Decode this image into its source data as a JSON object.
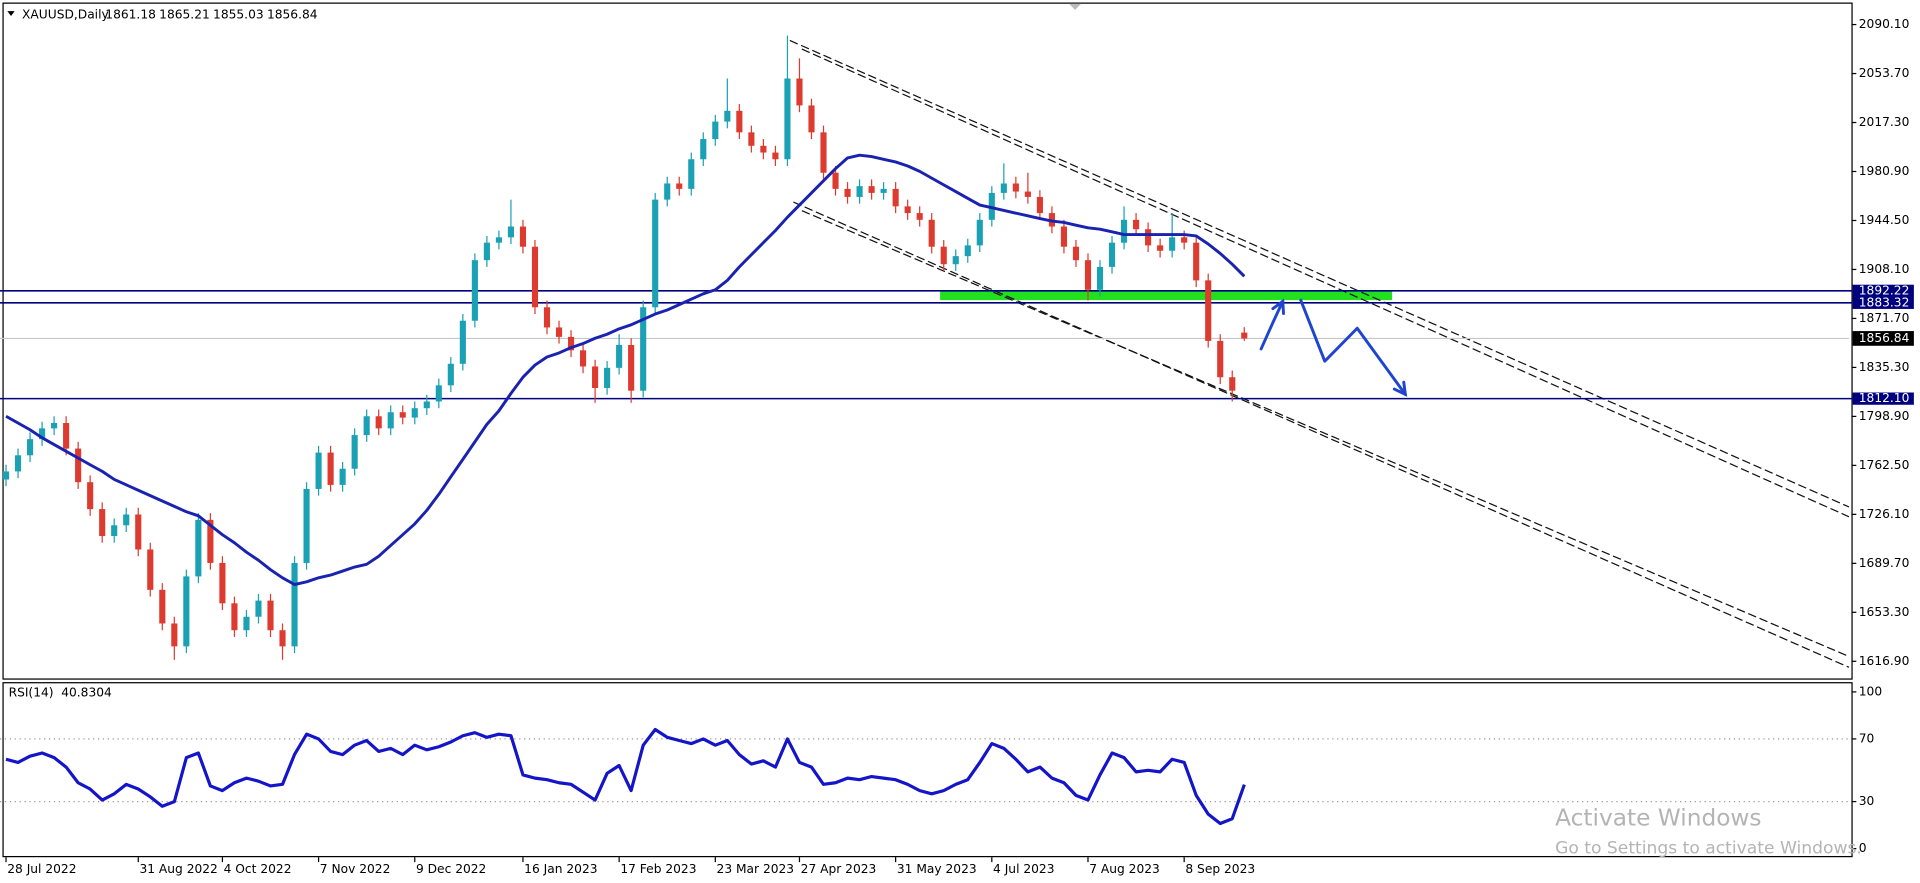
{
  "chart_data": {
    "type": "candlestick",
    "title": "XAUUSD,Daily",
    "up_color": "#1ba1b4",
    "down_color": "#dd3b30",
    "categories": [
      "28 Jul 2022",
      null,
      null,
      null,
      null,
      null,
      null,
      null,
      null,
      null,
      null,
      "31 Aug 2022",
      null,
      null,
      null,
      null,
      null,
      null,
      "4 Oct 2022",
      null,
      null,
      null,
      null,
      null,
      null,
      null,
      "7 Nov 2022",
      null,
      null,
      null,
      null,
      null,
      null,
      null,
      "9 Dec 2022",
      null,
      null,
      null,
      null,
      null,
      null,
      null,
      null,
      "16 Jan 2023",
      null,
      null,
      null,
      null,
      null,
      null,
      null,
      "17 Feb 2023",
      null,
      null,
      null,
      null,
      null,
      null,
      null,
      "23 Mar 2023",
      null,
      null,
      null,
      null,
      null,
      null,
      "27 Apr 2023",
      null,
      null,
      null,
      null,
      null,
      null,
      null,
      "31 May 2023",
      null,
      null,
      null,
      null,
      null,
      null,
      null,
      "4 Jul 2023",
      null,
      null,
      null,
      null,
      null,
      null,
      null,
      "7 Aug 2023",
      null,
      null,
      null,
      null,
      null,
      null,
      null,
      "8 Sep 2023",
      null,
      null,
      null,
      null,
      null
    ],
    "ohlc": [
      [
        1752,
        1763,
        1747,
        1758
      ],
      [
        1758,
        1775,
        1753,
        1770
      ],
      [
        1770,
        1787,
        1765,
        1782
      ],
      [
        1782,
        1795,
        1777,
        1790
      ],
      [
        1790,
        1799,
        1785,
        1794
      ],
      [
        1794,
        1799,
        1770,
        1775
      ],
      [
        1775,
        1780,
        1745,
        1750
      ],
      [
        1750,
        1755,
        1725,
        1730
      ],
      [
        1730,
        1735,
        1705,
        1710
      ],
      [
        1710,
        1723,
        1705,
        1718
      ],
      [
        1718,
        1731,
        1713,
        1726
      ],
      [
        1726,
        1731,
        1695,
        1700
      ],
      [
        1700,
        1705,
        1665,
        1670
      ],
      [
        1670,
        1675,
        1640,
        1645
      ],
      [
        1645,
        1650,
        1618,
        1628
      ],
      [
        1628,
        1685,
        1623,
        1680
      ],
      [
        1680,
        1727,
        1675,
        1722
      ],
      [
        1722,
        1727,
        1685,
        1690
      ],
      [
        1690,
        1695,
        1655,
        1660
      ],
      [
        1660,
        1665,
        1635,
        1640
      ],
      [
        1640,
        1655,
        1635,
        1650
      ],
      [
        1650,
        1667,
        1645,
        1662
      ],
      [
        1662,
        1667,
        1635,
        1640
      ],
      [
        1640,
        1645,
        1618,
        1628
      ],
      [
        1628,
        1695,
        1623,
        1690
      ],
      [
        1690,
        1750,
        1685,
        1745
      ],
      [
        1745,
        1777,
        1740,
        1772
      ],
      [
        1772,
        1777,
        1743,
        1748
      ],
      [
        1748,
        1765,
        1743,
        1760
      ],
      [
        1760,
        1790,
        1755,
        1785
      ],
      [
        1785,
        1804,
        1780,
        1799
      ],
      [
        1799,
        1804,
        1785,
        1790
      ],
      [
        1790,
        1807,
        1785,
        1802
      ],
      [
        1802,
        1807,
        1793,
        1798
      ],
      [
        1798,
        1810,
        1793,
        1805
      ],
      [
        1805,
        1815,
        1800,
        1810
      ],
      [
        1810,
        1827,
        1805,
        1822
      ],
      [
        1822,
        1843,
        1817,
        1838
      ],
      [
        1838,
        1875,
        1833,
        1870
      ],
      [
        1870,
        1920,
        1865,
        1915
      ],
      [
        1915,
        1933,
        1910,
        1928
      ],
      [
        1928,
        1937,
        1923,
        1932
      ],
      [
        1932,
        1960,
        1927,
        1940
      ],
      [
        1940,
        1945,
        1920,
        1925
      ],
      [
        1925,
        1930,
        1875,
        1880
      ],
      [
        1880,
        1885,
        1860,
        1865
      ],
      [
        1865,
        1870,
        1853,
        1858
      ],
      [
        1858,
        1863,
        1843,
        1848
      ],
      [
        1848,
        1853,
        1831,
        1836
      ],
      [
        1836,
        1841,
        1809,
        1820
      ],
      [
        1820,
        1840,
        1815,
        1835
      ],
      [
        1835,
        1860,
        1830,
        1852
      ],
      [
        1852,
        1857,
        1809,
        1818
      ],
      [
        1818,
        1885,
        1813,
        1880
      ],
      [
        1880,
        1965,
        1875,
        1960
      ],
      [
        1960,
        1977,
        1955,
        1972
      ],
      [
        1972,
        1977,
        1963,
        1968
      ],
      [
        1968,
        1995,
        1963,
        1990
      ],
      [
        1990,
        2010,
        1985,
        2005
      ],
      [
        2005,
        2023,
        2000,
        2018
      ],
      [
        2018,
        2050,
        2013,
        2026
      ],
      [
        2026,
        2031,
        2005,
        2010
      ],
      [
        2010,
        2015,
        1995,
        2000
      ],
      [
        2000,
        2005,
        1990,
        1995
      ],
      [
        1995,
        2000,
        1985,
        1990
      ],
      [
        1990,
        2082,
        1985,
        2050
      ],
      [
        2050,
        2065,
        2025,
        2030
      ],
      [
        2030,
        2035,
        2005,
        2010
      ],
      [
        2010,
        2015,
        1975,
        1980
      ],
      [
        1980,
        1985,
        1963,
        1968
      ],
      [
        1968,
        1973,
        1957,
        1962
      ],
      [
        1962,
        1975,
        1957,
        1970
      ],
      [
        1970,
        1975,
        1960,
        1965
      ],
      [
        1965,
        1973,
        1960,
        1968
      ],
      [
        1968,
        1973,
        1950,
        1955
      ],
      [
        1955,
        1960,
        1945,
        1950
      ],
      [
        1950,
        1955,
        1940,
        1945
      ],
      [
        1945,
        1950,
        1920,
        1925
      ],
      [
        1925,
        1930,
        1907,
        1912
      ],
      [
        1912,
        1923,
        1907,
        1918
      ],
      [
        1918,
        1931,
        1913,
        1926
      ],
      [
        1926,
        1950,
        1921,
        1945
      ],
      [
        1945,
        1970,
        1940,
        1965
      ],
      [
        1965,
        1987,
        1960,
        1972
      ],
      [
        1972,
        1977,
        1961,
        1966
      ],
      [
        1966,
        1980,
        1957,
        1962
      ],
      [
        1962,
        1967,
        1945,
        1950
      ],
      [
        1950,
        1955,
        1935,
        1940
      ],
      [
        1940,
        1945,
        1920,
        1925
      ],
      [
        1925,
        1930,
        1910,
        1915
      ],
      [
        1915,
        1920,
        1885,
        1893
      ],
      [
        1893,
        1915,
        1888,
        1910
      ],
      [
        1910,
        1933,
        1905,
        1928
      ],
      [
        1928,
        1955,
        1923,
        1945
      ],
      [
        1945,
        1950,
        1933,
        1938
      ],
      [
        1938,
        1943,
        1921,
        1926
      ],
      [
        1926,
        1931,
        1917,
        1922
      ],
      [
        1922,
        1950,
        1917,
        1932
      ],
      [
        1932,
        1937,
        1923,
        1928
      ],
      [
        1928,
        1933,
        1895,
        1900
      ],
      [
        1900,
        1905,
        1850,
        1855
      ],
      [
        1855,
        1860,
        1823,
        1828
      ],
      [
        1828,
        1833,
        1810,
        1818
      ],
      [
        1861.18,
        1865.21,
        1855.03,
        1856.84
      ]
    ],
    "xlim": [
      -0.5,
      153.3
    ],
    "ylim": [
      1603.25,
      2108.3
    ],
    "yticks": [
      {
        "value": 2090.1,
        "label": "2090.10"
      },
      {
        "value": 2053.7,
        "label": "2053.70"
      },
      {
        "value": 2017.3,
        "label": "2017.30"
      },
      {
        "value": 1980.9,
        "label": "1980.90"
      },
      {
        "value": 1944.5,
        "label": "1944.50"
      },
      {
        "value": 1908.1,
        "label": "1908.10"
      },
      {
        "value": 1871.7,
        "label": "1871.70"
      },
      {
        "value": 1835.3,
        "label": "1835.30"
      },
      {
        "value": 1798.9,
        "label": "1798.90"
      },
      {
        "value": 1762.5,
        "label": "1762.50"
      },
      {
        "value": 1726.1,
        "label": "1726.10"
      },
      {
        "value": 1689.7,
        "label": "1689.70"
      },
      {
        "value": 1653.3,
        "label": "1653.30"
      },
      {
        "value": 1616.9,
        "label": "1616.90"
      }
    ],
    "grid": false,
    "ma": {
      "color": "#1a22b0",
      "values": [
        1799,
        1794,
        1789,
        1783,
        1778,
        1773,
        1768,
        1763,
        1758,
        1752,
        1748,
        1744,
        1740,
        1736,
        1732,
        1728,
        1725,
        1718,
        1711,
        1705,
        1698,
        1692,
        1685,
        1679,
        1674,
        1676,
        1679,
        1681,
        1684,
        1687,
        1689,
        1695,
        1703,
        1711,
        1719,
        1729,
        1741,
        1754,
        1767,
        1780,
        1793,
        1803,
        1816,
        1828,
        1837,
        1843,
        1846,
        1850,
        1853,
        1857,
        1860,
        1864,
        1867,
        1871,
        1875,
        1878,
        1882,
        1886,
        1890,
        1893,
        1900,
        1910,
        1919,
        1928,
        1937,
        1947,
        1956,
        1965,
        1974,
        1983,
        1991,
        1993,
        1992,
        1990,
        1988,
        1985,
        1981,
        1976,
        1971,
        1966,
        1961,
        1956,
        1954,
        1952,
        1950,
        1948,
        1946,
        1944,
        1943,
        1941,
        1939,
        1938,
        1936,
        1934,
        1934,
        1934,
        1934,
        1934,
        1934,
        1933,
        1927,
        1920,
        1912,
        1903
      ]
    },
    "hline_color": "#00007f",
    "hlines": [
      1892.22,
      1883.32,
      {
        "value": 1812.1,
        "label": "1812.10"
      }
    ],
    "zone": {
      "color": "#22e01e",
      "x": [
        77.7,
        115.3
      ],
      "y": [
        1885.3,
        1892.6
      ]
    },
    "trendlines": [
      {
        "x": [
          65.2,
          153.3
        ],
        "y": [
          2078.3,
          1731.6
        ]
      },
      {
        "x": [
          66.2,
          153.3
        ],
        "y": [
          2071.9,
          1724.3
        ]
      },
      {
        "x": [
          65.5,
          153.3
        ],
        "y": [
          1958.2,
          1612.4
        ]
      },
      {
        "x": [
          66.2,
          153.3
        ],
        "y": [
          1951.8,
          1620.5
        ]
      }
    ],
    "drawings": {
      "color": "#1f45d0",
      "items": [
        {
          "x": [
            104.4,
            105.4,
            106.2
          ],
          "y": [
            1849,
            1869,
            1884.4
          ]
        },
        {
          "x": [
            107.7,
            109.7,
            112.4,
            116.4
          ],
          "y": [
            1885.3,
            1839.9,
            1864.4,
            1815.3
          ]
        }
      ]
    },
    "indicator": {
      "type": "line",
      "title": "RSI(14)",
      "color": "#1414c8",
      "ylim": [
        -5.5,
        106.25
      ],
      "yticks": [
        100,
        70,
        30,
        0
      ],
      "levels": [
        70,
        30
      ],
      "values": [
        57,
        55,
        59,
        61,
        58,
        52,
        42,
        38,
        31,
        35,
        41,
        38,
        33,
        27,
        30,
        58,
        61,
        40,
        37,
        42,
        45,
        43,
        40,
        41,
        60,
        73,
        70,
        62,
        60,
        66,
        69,
        62,
        64,
        60,
        66,
        63,
        65,
        68,
        72,
        74,
        71,
        73,
        72,
        47,
        45,
        44,
        42,
        41,
        36,
        31,
        48,
        53,
        37,
        66,
        76,
        71,
        69,
        67,
        70,
        66,
        69,
        60,
        54,
        56,
        52,
        70,
        55,
        52,
        41,
        42,
        45,
        44,
        46,
        45,
        44,
        41,
        37,
        35,
        37,
        41,
        44,
        55,
        67,
        64,
        57,
        49,
        52,
        45,
        42,
        34,
        31,
        47,
        61,
        58,
        49,
        50,
        49,
        57,
        55,
        34,
        22,
        16,
        19,
        40.8304
      ]
    },
    "watermark": [
      "Activate Windows",
      "Go to Settings to activate Windows."
    ]
  }
}
